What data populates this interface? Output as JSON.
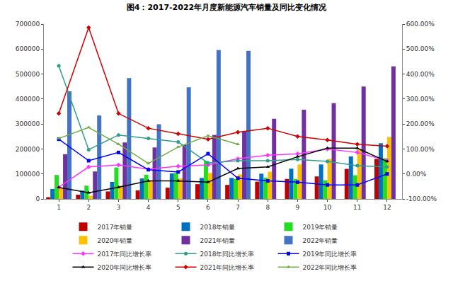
{
  "chart_data": {
    "type": "bar",
    "title": "图4：2017-2022年月度新能源汽车销量及同比变化情况",
    "categories": [
      "1",
      "2",
      "3",
      "4",
      "5",
      "6",
      "7",
      "8",
      "9",
      "10",
      "11",
      "12"
    ],
    "ylim": [
      0,
      700000
    ],
    "yticks": [
      0,
      100000,
      200000,
      300000,
      400000,
      500000,
      600000,
      700000
    ],
    "y2lim": [
      -100,
      600
    ],
    "y2ticks": [
      {
        "value": -100,
        "label": "-100.00%"
      },
      {
        "value": 0,
        "label": "0.00%"
      },
      {
        "value": 100,
        "label": "100.00%"
      },
      {
        "value": 200,
        "label": "200.00%"
      },
      {
        "value": 300,
        "label": "300.00%"
      },
      {
        "value": 400,
        "label": "400.00%"
      },
      {
        "value": 500,
        "label": "500.00%"
      },
      {
        "value": 600,
        "label": "600.00%"
      }
    ],
    "grid": false,
    "legend": "bottom",
    "series": [
      {
        "name": "2017年销量",
        "type": "bar",
        "color": "#c00000",
        "values": [
          6800,
          17000,
          30000,
          34000,
          45000,
          59000,
          56000,
          69000,
          80000,
          90000,
          120000,
          160000
        ]
      },
      {
        "name": "2018年销量",
        "type": "bar",
        "color": "#0070c0",
        "values": [
          40000,
          33000,
          68000,
          82000,
          102000,
          84000,
          84000,
          101000,
          121000,
          138000,
          170000,
          223000
        ]
      },
      {
        "name": "2019年销量",
        "type": "bar",
        "color": "#22dd22",
        "values": [
          96000,
          53000,
          126000,
          97000,
          104000,
          152000,
          80000,
          85000,
          80000,
          75000,
          95000,
          163000
        ]
      },
      {
        "name": "2020年销量",
        "type": "bar",
        "color": "#ffc000",
        "values": [
          44000,
          13000,
          53000,
          72000,
          82000,
          104000,
          98000,
          109000,
          138000,
          160000,
          200000,
          248000
        ]
      },
      {
        "name": "2021年销量",
        "type": "bar",
        "color": "#7030a0",
        "values": [
          179000,
          110000,
          226000,
          206000,
          217000,
          256000,
          271000,
          321000,
          357000,
          383000,
          450000,
          531000
        ]
      },
      {
        "name": "2022年销量",
        "type": "bar",
        "color": "#4472c4",
        "values": [
          431000,
          334000,
          484000,
          299000,
          447000,
          596000,
          593000,
          null,
          null,
          null,
          null,
          null
        ]
      },
      {
        "name": "2017年同比增长率",
        "type": "line",
        "axis": "y2",
        "color": "#ff33ff",
        "marker": "diamond",
        "values": [
          -53,
          28,
          36,
          19,
          31,
          36,
          61,
          75,
          81,
          100,
          86,
          53
        ]
      },
      {
        "name": "2018年同比增长率",
        "type": "line",
        "axis": "y2",
        "color": "#2e9e8a",
        "marker": "circle",
        "values": [
          433,
          97,
          156,
          142,
          128,
          44,
          53,
          53,
          58,
          50,
          33,
          28
        ]
      },
      {
        "name": "2019年同比增长率",
        "type": "line",
        "axis": "y2",
        "color": "#0000ff",
        "marker": "square",
        "values": [
          139,
          53,
          86,
          17,
          8,
          81,
          -17,
          -28,
          -33,
          -44,
          -44,
          0
        ]
      },
      {
        "name": "2020年同比增长率",
        "type": "line",
        "axis": "y2",
        "color": "#000000",
        "marker": "triangle-up",
        "values": [
          -54,
          -75,
          -53,
          -28,
          -28,
          -33,
          22,
          28,
          69,
          103,
          103,
          50
        ]
      },
      {
        "name": "2021年同比增长率",
        "type": "line",
        "axis": "y2",
        "color": "#d00000",
        "marker": "diamond",
        "values": [
          242,
          586,
          242,
          183,
          161,
          139,
          167,
          183,
          150,
          136,
          119,
          111
        ]
      },
      {
        "name": "2022年同比增长率",
        "type": "line",
        "axis": "y2",
        "color": "#70ad47",
        "marker": "triangle-up",
        "values": [
          142,
          186,
          119,
          42,
          108,
          153,
          119,
          null,
          null,
          null,
          null,
          null
        ]
      }
    ]
  }
}
